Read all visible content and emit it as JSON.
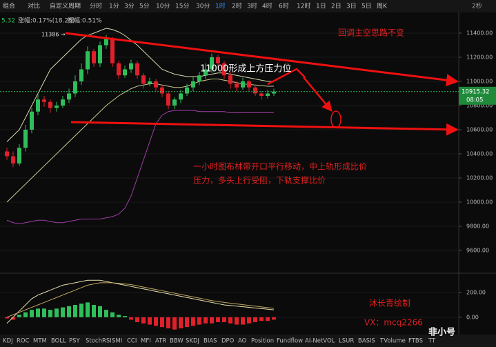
{
  "toolbar": {
    "items": [
      "组合",
      "对比",
      "自定义周期",
      "分时",
      "1分",
      "3分",
      "5分",
      "10分",
      "15分",
      "30分",
      "1时",
      "2时",
      "3时",
      "4时",
      "6时",
      "12时",
      "1日",
      "2日",
      "3日",
      "5日",
      "周K"
    ],
    "active": "1时",
    "refresh": "2秒"
  },
  "stats": {
    "price": "5.32",
    "change": "涨幅:0.17%(18.25)",
    "amplitude": "振幅:0.51%"
  },
  "chart_data": [
    {
      "type": "candlestick",
      "up_color": "#2fbf5a",
      "down_color": "#e0202a",
      "open": [
        10420,
        10380,
        10320,
        10450,
        10600,
        10750,
        10850,
        10830,
        10780,
        10800,
        10850,
        10900,
        11000,
        11100,
        11250,
        11150,
        11300,
        11350,
        11150,
        11050,
        11100,
        11150,
        11050,
        10980,
        11000,
        10950,
        10900,
        10800,
        10850,
        10900,
        10950,
        11000,
        11050,
        11100,
        11200,
        11150,
        11050,
        10980,
        10950,
        11000,
        10950,
        10900,
        10880,
        10900
      ],
      "high": [
        10450,
        10420,
        10480,
        10640,
        10780,
        10900,
        10880,
        10850,
        10830,
        10880,
        10940,
        11050,
        11150,
        11290,
        11270,
        11330,
        11386,
        11370,
        11170,
        11130,
        11180,
        11170,
        11070,
        11030,
        11020,
        10970,
        10920,
        10870,
        10930,
        10980,
        11040,
        11080,
        11150,
        11230,
        11220,
        11170,
        11080,
        11000,
        11030,
        11010,
        10960,
        10920,
        10930,
        10940
      ],
      "low": [
        10350,
        10290,
        10300,
        10420,
        10570,
        10720,
        10790,
        10740,
        10750,
        10780,
        10820,
        10870,
        10970,
        11060,
        11120,
        11120,
        11270,
        11120,
        11020,
        11030,
        11070,
        11020,
        10940,
        10960,
        10920,
        10870,
        10770,
        10770,
        10820,
        10880,
        10920,
        10970,
        11020,
        11070,
        11120,
        11020,
        10940,
        10920,
        10930,
        10920,
        10880,
        10850,
        10860,
        10880
      ],
      "close": [
        10380,
        10320,
        10450,
        10600,
        10750,
        10850,
        10830,
        10780,
        10800,
        10850,
        10900,
        11000,
        11100,
        11250,
        11150,
        11300,
        11350,
        11150,
        11050,
        11100,
        11150,
        11050,
        10980,
        11000,
        10950,
        10900,
        10800,
        10850,
        10900,
        10950,
        11000,
        11050,
        11100,
        11200,
        11150,
        11050,
        10980,
        10950,
        11000,
        10950,
        10900,
        10880,
        10900,
        10915.32
      ],
      "lines": [
        {
          "color": "#d8d8b0",
          "values": [
            10500,
            10550,
            10600,
            10700,
            10800,
            10900,
            11000,
            11100,
            11150,
            11200,
            11250,
            11300,
            11350,
            11380,
            11400,
            11420,
            11440,
            11430,
            11410,
            11380,
            11340,
            11300,
            11250,
            11200,
            11150,
            11100,
            11080,
            11060,
            11050,
            11040,
            11040,
            11040,
            11050,
            11060,
            11070,
            11070,
            11060,
            11050,
            11040,
            11030,
            11020,
            11010,
            11000,
            11000
          ]
        },
        {
          "color": "#c8c890",
          "values": [
            10000,
            10050,
            10100,
            10150,
            10200,
            10250,
            10300,
            10350,
            10400,
            10450,
            10500,
            10550,
            10600,
            10650,
            10700,
            10750,
            10800,
            10840,
            10880,
            10910,
            10940,
            10960,
            10970,
            10980,
            10980,
            10970,
            10960,
            10950,
            10950,
            10960,
            10980,
            11000,
            11010,
            11020,
            11020,
            11010,
            11000,
            10990,
            10980,
            10975,
            10970,
            10965,
            10960,
            10960
          ]
        },
        {
          "color": "#a040a8",
          "values": [
            9850,
            9830,
            9820,
            9830,
            9840,
            9850,
            9850,
            9840,
            9830,
            9830,
            9840,
            9850,
            9860,
            9860,
            9860,
            9860,
            9870,
            9880,
            9900,
            9950,
            10050,
            10200,
            10350,
            10500,
            10650,
            10720,
            10750,
            10760,
            10760,
            10760,
            10760,
            10750,
            10750,
            10750,
            10750,
            10750,
            10740,
            10740,
            10740,
            10740,
            10740,
            10740,
            10740,
            10740
          ]
        }
      ],
      "ylim": [
        9417,
        11560
      ],
      "yticks": [
        {
          "value": 9600,
          "label": "9600.00"
        },
        {
          "value": 9800,
          "label": "9800.00"
        },
        {
          "value": 10000,
          "label": "10000.00"
        },
        {
          "value": 10200,
          "label": "10200.00"
        },
        {
          "value": 10400,
          "label": "10400.00"
        },
        {
          "value": 10600,
          "label": "10600.00"
        },
        {
          "value": 10800,
          "label": "10800.00"
        },
        {
          "value": 11000,
          "label": "11000.00"
        },
        {
          "value": 11200,
          "label": "11200.00"
        },
        {
          "value": 11400,
          "label": "11400.00"
        }
      ],
      "countdown": "08:05",
      "high_label": "11386 →"
    },
    {
      "type": "bar",
      "up_color": "#2fbf5a",
      "down_color": "#e0202a",
      "values": [
        -10,
        -20,
        20,
        40,
        60,
        70,
        70,
        60,
        70,
        80,
        90,
        100,
        110,
        120,
        100,
        90,
        60,
        40,
        20,
        10,
        -20,
        -40,
        -50,
        -60,
        -70,
        -80,
        -90,
        -100,
        -90,
        -80,
        -70,
        -60,
        -50,
        -50,
        -40,
        -40,
        -50,
        -60,
        -60,
        -50,
        -40,
        -30,
        -30,
        -20
      ],
      "lines": [
        {
          "color": "#e8e0b0",
          "values": [
            -50,
            0,
            50,
            100,
            150,
            180,
            200,
            220,
            240,
            260,
            270,
            280,
            290,
            300,
            300,
            300,
            290,
            280,
            270,
            260,
            250,
            240,
            230,
            220,
            210,
            200,
            190,
            180,
            170,
            160,
            150,
            140,
            130,
            120,
            110,
            100,
            95,
            90,
            85,
            80,
            75,
            70,
            65,
            60
          ]
        },
        {
          "color": "#c0a860",
          "values": [
            0,
            20,
            40,
            60,
            80,
            100,
            120,
            140,
            160,
            180,
            200,
            220,
            240,
            260,
            270,
            280,
            280,
            280,
            275,
            270,
            265,
            255,
            245,
            235,
            225,
            215,
            205,
            195,
            185,
            175,
            165,
            155,
            145,
            135,
            128,
            120,
            114,
            108,
            102,
            96,
            90,
            84,
            78,
            72
          ]
        }
      ],
      "ylim": [
        -124,
        335
      ],
      "yticks": [
        {
          "value": 0,
          "label": "0.00"
        },
        {
          "value": 200,
          "label": "200.00"
        }
      ]
    }
  ],
  "annotations": {
    "trend": "回调主空思路不变",
    "resistance": "11000形成上方压力位",
    "comment": [
      "一小时图布林带开口平行移动，中上轨形成比价",
      "压力，多头上行受阻，下轨支撑比价"
    ],
    "author": "沐长青绘制",
    "contact": "VX：mcq2266"
  },
  "tabs": [
    "KDJ",
    "ROC",
    "MTM",
    "BOLL",
    "PSY",
    "StochRSI",
    "SMI",
    "CCI",
    "MFI",
    "ATR",
    "BBW",
    "SKDJ",
    "BIAS",
    "DPO",
    "AO",
    "Position",
    "Fundflow",
    "AI-NetVOL",
    "LSUR",
    "BASIS",
    "TVolume",
    "FTBS",
    "TT"
  ],
  "watermark": "非小号"
}
